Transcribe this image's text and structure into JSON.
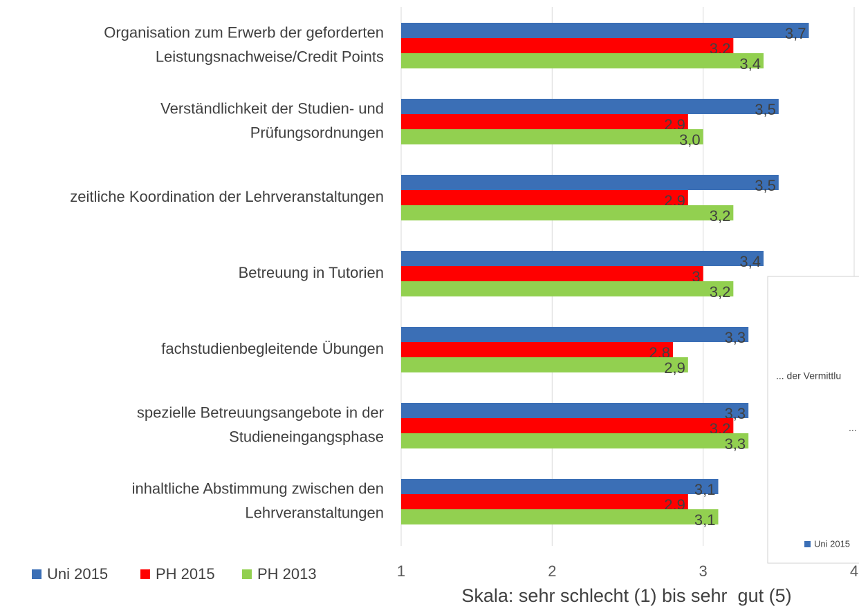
{
  "chart_data": {
    "type": "bar",
    "orientation": "horizontal",
    "xlabel": "Skala: sehr schlecht (1) bis sehr  gut (5)",
    "categories": [
      "Organisation zum Erwerb der geforderten\nLeistungsnachweise/Credit Points",
      "Verständlichkeit der Studien- und\nPrüfungsordnungen",
      "zeitliche Koordination der Lehrveranstaltungen",
      "Betreuung in Tutorien",
      "fachstudienbegleitende Übungen",
      "spezielle Betreuungsangebote in der\nStudieneingangsphase",
      "inhaltliche Abstimmung zwischen den\nLehrveranstaltungen"
    ],
    "series": [
      {
        "name": "Uni 2015",
        "color": "#3b6fb6",
        "values": [
          3.7,
          3.5,
          3.5,
          3.4,
          3.3,
          3.3,
          3.1
        ],
        "value_labels": [
          "3,7",
          "3,5",
          "3,5",
          "3,4",
          "3,3",
          "3,3",
          "3,1"
        ]
      },
      {
        "name": "PH 2015",
        "color": "#ff0000",
        "values": [
          3.2,
          2.9,
          2.9,
          3,
          2.8,
          3.2,
          2.9
        ],
        "value_labels": [
          "3,2",
          "2,9",
          "2,9",
          "3",
          "2,8",
          "3,2",
          "2,9"
        ]
      },
      {
        "name": "PH 2013",
        "color": "#92d050",
        "values": [
          3.4,
          3.0,
          3.2,
          3.2,
          2.9,
          3.3,
          3.1
        ],
        "value_labels": [
          "3,4",
          "3,0",
          "3,2",
          "3,2",
          "2,9",
          "3,3",
          "3,1"
        ]
      }
    ],
    "xlim": [
      1,
      4
    ],
    "xticks": [
      1,
      2,
      3,
      4
    ],
    "grid": true,
    "legend": "bottom-left"
  },
  "overlay": {
    "texts": [
      "... der Vermittlu",
      "..."
    ],
    "legend": "Uni 2015",
    "legend_color": "#3b6fb6"
  }
}
